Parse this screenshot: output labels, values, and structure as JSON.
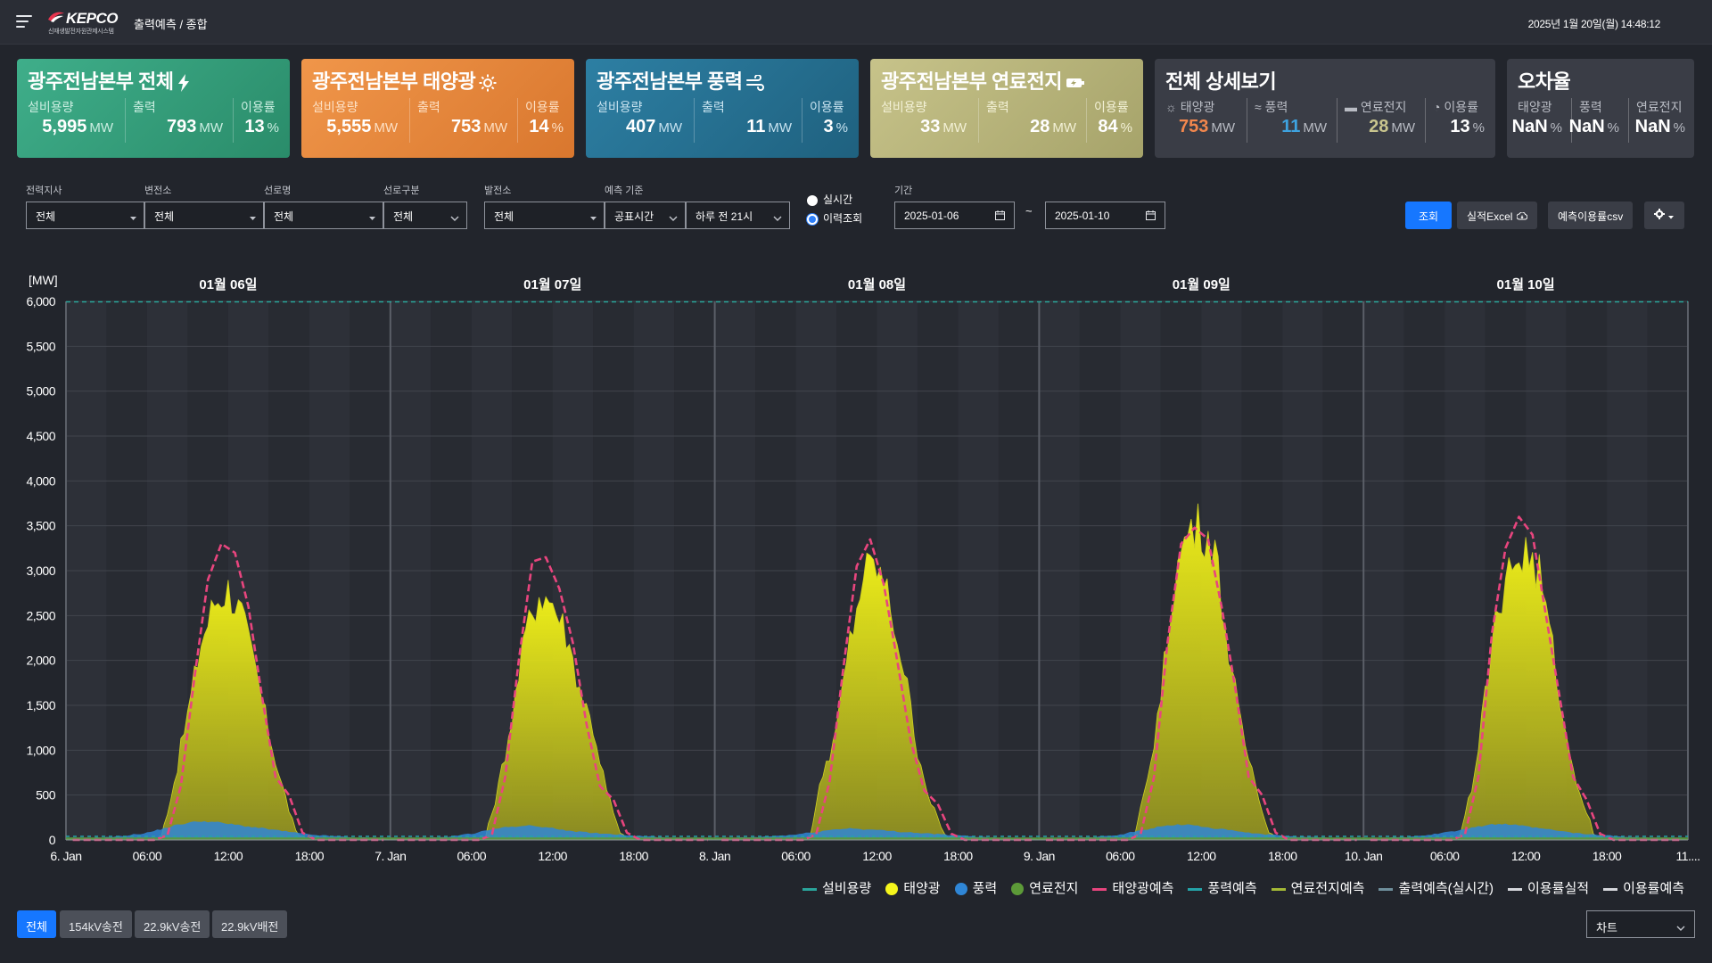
{
  "header": {
    "logo_text": "KEPCO",
    "logo_sub": "신재생발전자원관제시스템",
    "breadcrumb": "출력예측 / 종합",
    "datetime": "2025년 1월 20일(월) 14:48:12"
  },
  "cards": {
    "total": {
      "title": "광주전남본부 전체",
      "icon": "lightning-icon",
      "m1_label": "설비용량",
      "m1_value": "5,995",
      "m1_unit": "MW",
      "m2_label": "출력",
      "m2_value": "793",
      "m2_unit": "MW",
      "m3_label": "이용률",
      "m3_value": "13",
      "m3_unit": "%"
    },
    "solar": {
      "title": "광주전남본부 태양광",
      "icon": "sun-icon",
      "m1_label": "설비용량",
      "m1_value": "5,555",
      "m1_unit": "MW",
      "m2_label": "출력",
      "m2_value": "753",
      "m2_unit": "MW",
      "m3_label": "이용률",
      "m3_value": "14",
      "m3_unit": "%"
    },
    "wind": {
      "title": "광주전남본부 풍력",
      "icon": "wind-icon",
      "m1_label": "설비용량",
      "m1_value": "407",
      "m1_unit": "MW",
      "m2_label": "출력",
      "m2_value": "11",
      "m2_unit": "MW",
      "m3_label": "이용률",
      "m3_value": "3",
      "m3_unit": "%"
    },
    "fuel": {
      "title": "광주전남본부 연료전지",
      "icon": "battery-icon",
      "m1_label": "설비용량",
      "m1_value": "33",
      "m1_unit": "MW",
      "m2_label": "출력",
      "m2_value": "28",
      "m2_unit": "MW",
      "m3_label": "이용률",
      "m3_value": "84",
      "m3_unit": "%"
    },
    "detail": {
      "title": "전체 상세보기",
      "m1_label": "태양광",
      "m1_value": "753",
      "m1_unit": "MW",
      "m1_color": "#f2874d",
      "m2_label": "풍력",
      "m2_value": "11",
      "m2_unit": "MW",
      "m2_color": "#3ea3e0",
      "m3_label": "연료전지",
      "m3_value": "28",
      "m3_unit": "MW",
      "m3_color": "#c9c58e",
      "m4_label": "이용률",
      "m4_value": "13",
      "m4_unit": "%"
    },
    "error": {
      "title": "오차율",
      "m1_label": "태양광",
      "m1_value": "NaN",
      "m1_unit": "%",
      "m2_label": "풍력",
      "m2_value": "NaN",
      "m2_unit": "%",
      "m3_label": "연료전지",
      "m3_value": "NaN",
      "m3_unit": "%"
    }
  },
  "filters": {
    "branch": {
      "label": "전력지사",
      "value": "전체"
    },
    "substation": {
      "label": "변전소",
      "value": "전체"
    },
    "line": {
      "label": "선로명",
      "value": "전체"
    },
    "line_type": {
      "label": "선로구분",
      "value": "전체"
    },
    "plant": {
      "label": "발전소",
      "value": "전체"
    },
    "forecast_basis": {
      "label": "예측 기준",
      "value": "공표시간",
      "value2": "하루 전 21시"
    },
    "mode_realtime": "실시간",
    "mode_history": "이력조회",
    "period_label": "기간",
    "date_from": "2025-01-06",
    "date_to": "2025-01-10",
    "tilde": "~"
  },
  "actions": {
    "search": "조회",
    "excel": "실적Excel",
    "csv": "예측이용률csv"
  },
  "chart_data": {
    "type": "area",
    "ylabel": "[MW]",
    "ylim": [
      0,
      6000
    ],
    "yticks": [
      "0",
      "500",
      "1,000",
      "1,500",
      "2,000",
      "2,500",
      "3,000",
      "3,500",
      "4,000",
      "4,500",
      "5,000",
      "5,500",
      "6,000"
    ],
    "day_labels": [
      "01월 06일",
      "01월 07일",
      "01월 08일",
      "01월 09일",
      "01월 10일"
    ],
    "xticks": [
      "6. Jan",
      "06:00",
      "12:00",
      "18:00",
      "7. Jan",
      "06:00",
      "12:00",
      "18:00",
      "8. Jan",
      "06:00",
      "12:00",
      "18:00",
      "9. Jan",
      "06:00",
      "12:00",
      "18:00",
      "10. Jan",
      "06:00",
      "12:00",
      "18:00",
      "11...."
    ],
    "capacity_mw": 5995,
    "series": [
      {
        "name": "태양광",
        "color": "#e6e619",
        "hourly": [
          [
            0,
            0,
            0,
            0,
            0,
            0,
            0,
            0,
            650,
            1400,
            2200,
            2650,
            2800,
            2500,
            1900,
            1200,
            600,
            80,
            0,
            0,
            0,
            0,
            0,
            0
          ],
          [
            0,
            0,
            0,
            0,
            0,
            0,
            0,
            0,
            600,
            1350,
            2300,
            2750,
            2650,
            2300,
            1700,
            1250,
            550,
            60,
            0,
            0,
            0,
            0,
            0,
            0
          ],
          [
            0,
            0,
            0,
            0,
            0,
            0,
            0,
            0,
            750,
            1200,
            2200,
            2950,
            3050,
            2600,
            1900,
            1000,
            400,
            60,
            0,
            0,
            0,
            0,
            0,
            0
          ],
          [
            0,
            0,
            0,
            0,
            0,
            0,
            0,
            0,
            650,
            1600,
            2900,
            3450,
            3500,
            3250,
            2100,
            1200,
            650,
            80,
            0,
            0,
            0,
            0,
            0,
            0
          ],
          [
            0,
            0,
            0,
            0,
            0,
            0,
            0,
            0,
            600,
            1600,
            2650,
            3050,
            3200,
            2950,
            2100,
            1100,
            550,
            80,
            0,
            0,
            0,
            0,
            0,
            0
          ]
        ]
      },
      {
        "name": "풍력",
        "color": "#2f86d6",
        "hourly": [
          [
            20,
            20,
            25,
            30,
            40,
            60,
            80,
            120,
            160,
            190,
            210,
            200,
            180,
            160,
            140,
            120,
            100,
            80,
            60,
            50,
            40,
            30,
            25,
            20
          ],
          [
            20,
            20,
            20,
            25,
            30,
            50,
            70,
            100,
            130,
            150,
            160,
            150,
            130,
            110,
            90,
            80,
            70,
            60,
            50,
            40,
            30,
            25,
            20,
            20
          ],
          [
            20,
            20,
            25,
            30,
            40,
            50,
            60,
            80,
            100,
            120,
            130,
            120,
            110,
            100,
            90,
            80,
            70,
            60,
            50,
            40,
            30,
            25,
            20,
            20
          ],
          [
            20,
            20,
            20,
            25,
            30,
            40,
            60,
            90,
            120,
            150,
            170,
            170,
            150,
            130,
            110,
            90,
            70,
            60,
            50,
            40,
            30,
            25,
            20,
            20
          ],
          [
            20,
            20,
            25,
            30,
            40,
            60,
            80,
            110,
            140,
            160,
            180,
            170,
            150,
            130,
            110,
            90,
            70,
            60,
            50,
            40,
            30,
            25,
            20,
            20
          ]
        ]
      },
      {
        "name": "연료전지",
        "color": "#5c9a38",
        "value": 28
      },
      {
        "name": "태양광예측",
        "color": "#e8457e",
        "hourly": [
          [
            0,
            0,
            0,
            0,
            0,
            0,
            0,
            50,
            600,
            1800,
            2900,
            3300,
            3200,
            2600,
            1600,
            700,
            500,
            80,
            0,
            0,
            0,
            0,
            0,
            0
          ],
          [
            0,
            0,
            0,
            0,
            0,
            0,
            0,
            50,
            700,
            2000,
            3100,
            3150,
            2800,
            2200,
            1300,
            600,
            450,
            80,
            0,
            0,
            0,
            0,
            0,
            0
          ],
          [
            0,
            0,
            0,
            0,
            0,
            0,
            0,
            60,
            650,
            1900,
            3050,
            3350,
            2850,
            2000,
            1100,
            550,
            400,
            70,
            0,
            0,
            0,
            0,
            0,
            0
          ],
          [
            0,
            0,
            0,
            0,
            0,
            0,
            0,
            60,
            700,
            2200,
            3300,
            3480,
            3350,
            2600,
            1700,
            700,
            500,
            80,
            0,
            0,
            0,
            0,
            0,
            0
          ],
          [
            0,
            0,
            0,
            0,
            0,
            0,
            0,
            60,
            700,
            2300,
            3250,
            3600,
            3400,
            2500,
            1600,
            700,
            450,
            70,
            0,
            0,
            0,
            0,
            0,
            0
          ]
        ]
      }
    ]
  },
  "legend": [
    {
      "label": "설비용량",
      "kind": "line",
      "color": "#2aa59b"
    },
    {
      "label": "태양광",
      "kind": "dot",
      "color": "#f5f51c"
    },
    {
      "label": "풍력",
      "kind": "dot",
      "color": "#2f86d6"
    },
    {
      "label": "연료전지",
      "kind": "dot",
      "color": "#5c9a38"
    },
    {
      "label": "태양광예측",
      "kind": "line",
      "color": "#e8457e"
    },
    {
      "label": "풍력예측",
      "kind": "line",
      "color": "#24a3a8"
    },
    {
      "label": "연료전지예측",
      "kind": "line",
      "color": "#a4b936"
    },
    {
      "label": "출력예측(실시간)",
      "kind": "line",
      "color": "#6f8f9c"
    },
    {
      "label": "이용률실적",
      "kind": "line",
      "color": "#d5d7dc"
    },
    {
      "label": "이용률예측",
      "kind": "line",
      "color": "#d5d7dc"
    }
  ],
  "bottom": {
    "tabs": [
      "전체",
      "154kV송전",
      "22.9kV송전",
      "22.9kV배전"
    ],
    "view": "차트"
  }
}
